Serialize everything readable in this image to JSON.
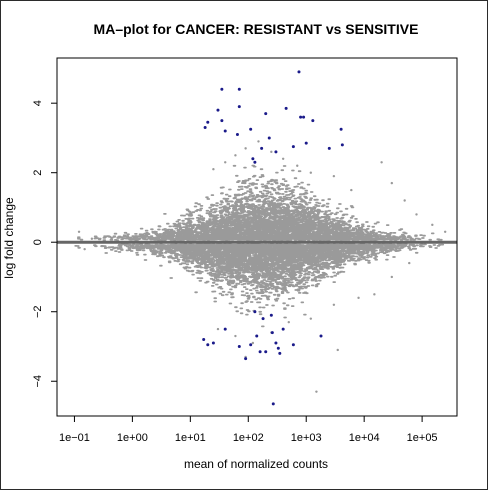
{
  "chart_data": {
    "type": "scatter",
    "title": "MA–plot for CANCER: RESISTANT vs SENSITIVE",
    "xlabel": "mean of normalized counts",
    "ylabel": "log fold change",
    "x_scale": "log10",
    "xlim": [
      0.05,
      400000
    ],
    "ylim": [
      -5,
      5.3
    ],
    "x_ticks": [
      {
        "value": 0.1,
        "label": "1e−01"
      },
      {
        "value": 1,
        "label": "1e+00"
      },
      {
        "value": 10,
        "label": "1e+01"
      },
      {
        "value": 100,
        "label": "1e+02"
      },
      {
        "value": 1000,
        "label": "1e+03"
      },
      {
        "value": 10000,
        "label": "1e+04"
      },
      {
        "value": 100000,
        "label": "1e+05"
      }
    ],
    "y_ticks": [
      {
        "value": -4,
        "label": "−4"
      },
      {
        "value": -2,
        "label": "−2"
      },
      {
        "value": 0,
        "label": "0"
      },
      {
        "value": 2,
        "label": "2"
      },
      {
        "value": 4,
        "label": "4"
      }
    ],
    "reference_line": {
      "y": 0,
      "color": "#666666"
    },
    "grid": false,
    "colors": {
      "nonsignificant": "#9a9a9a",
      "significant": "#1a1a8a"
    },
    "series": [
      {
        "significant": false,
        "density_profile": {
          "log10_mean_range": [
            -1,
            5.4
          ],
          "spread_peak_log10": 2.3
        },
        "points": [
          {
            "x": 25,
            "y": 2.1
          },
          {
            "x": 40,
            "y": 2.3
          },
          {
            "x": 60,
            "y": 2.5
          },
          {
            "x": 90,
            "y": 2.7
          },
          {
            "x": 150,
            "y": 2.9
          },
          {
            "x": 250,
            "y": 2.6
          },
          {
            "x": 400,
            "y": 2.4
          },
          {
            "x": 700,
            "y": 2.2
          },
          {
            "x": 1200,
            "y": 2.0
          },
          {
            "x": 3000,
            "y": 1.9
          },
          {
            "x": 6000,
            "y": 1.5
          },
          {
            "x": 20000,
            "y": 2.3
          },
          {
            "x": 30000,
            "y": 1.7
          },
          {
            "x": 50000,
            "y": 1.2
          },
          {
            "x": 80000,
            "y": 0.8
          },
          {
            "x": 150000,
            "y": 0.5
          },
          {
            "x": 250000,
            "y": 0.3
          },
          {
            "x": 0.12,
            "y": 0.3
          },
          {
            "x": 0.15,
            "y": -0.2
          },
          {
            "x": 0.2,
            "y": 0.1
          },
          {
            "x": 30,
            "y": -2.5
          },
          {
            "x": 60,
            "y": -2.7
          },
          {
            "x": 120,
            "y": -2.9
          },
          {
            "x": 250,
            "y": -2.6
          },
          {
            "x": 500,
            "y": -2.3
          },
          {
            "x": 1200,
            "y": -2.2
          },
          {
            "x": 3000,
            "y": -1.8
          },
          {
            "x": 8000,
            "y": -1.6
          },
          {
            "x": 15000,
            "y": -1.5
          },
          {
            "x": 30000,
            "y": -1.0
          },
          {
            "x": 60000,
            "y": -0.6
          },
          {
            "x": 1500,
            "y": -4.3
          },
          {
            "x": 90,
            "y": -3.3
          },
          {
            "x": 3500,
            "y": -3.1
          }
        ]
      },
      {
        "significant": true,
        "points": [
          {
            "x": 18,
            "y": 3.3
          },
          {
            "x": 20,
            "y": 3.45
          },
          {
            "x": 30,
            "y": 3.8
          },
          {
            "x": 35,
            "y": 4.4
          },
          {
            "x": 35,
            "y": 3.5
          },
          {
            "x": 40,
            "y": 3.2
          },
          {
            "x": 65,
            "y": 3.1
          },
          {
            "x": 70,
            "y": 4.4
          },
          {
            "x": 70,
            "y": 3.9
          },
          {
            "x": 110,
            "y": 3.25
          },
          {
            "x": 120,
            "y": 2.4
          },
          {
            "x": 130,
            "y": 2.3
          },
          {
            "x": 170,
            "y": 2.7
          },
          {
            "x": 200,
            "y": 3.7
          },
          {
            "x": 230,
            "y": 3.0
          },
          {
            "x": 300,
            "y": 2.6
          },
          {
            "x": 450,
            "y": 3.85
          },
          {
            "x": 600,
            "y": 2.75
          },
          {
            "x": 750,
            "y": 4.9
          },
          {
            "x": 800,
            "y": 3.6
          },
          {
            "x": 900,
            "y": 3.6
          },
          {
            "x": 1000,
            "y": 2.85
          },
          {
            "x": 1300,
            "y": 3.5
          },
          {
            "x": 2500,
            "y": 2.7
          },
          {
            "x": 4000,
            "y": 3.25
          },
          {
            "x": 4200,
            "y": 2.8
          },
          {
            "x": 17,
            "y": -2.8
          },
          {
            "x": 20,
            "y": -2.95
          },
          {
            "x": 25,
            "y": -2.9
          },
          {
            "x": 40,
            "y": -2.5
          },
          {
            "x": 70,
            "y": -3.0
          },
          {
            "x": 90,
            "y": -3.35
          },
          {
            "x": 110,
            "y": -2.95
          },
          {
            "x": 130,
            "y": -2.0
          },
          {
            "x": 140,
            "y": -2.7
          },
          {
            "x": 160,
            "y": -3.15
          },
          {
            "x": 180,
            "y": -2.2
          },
          {
            "x": 200,
            "y": -3.15
          },
          {
            "x": 250,
            "y": -2.1
          },
          {
            "x": 260,
            "y": -2.6
          },
          {
            "x": 270,
            "y": -4.65
          },
          {
            "x": 300,
            "y": -2.9
          },
          {
            "x": 330,
            "y": -3.05
          },
          {
            "x": 350,
            "y": -3.2
          },
          {
            "x": 400,
            "y": -2.5
          },
          {
            "x": 600,
            "y": -2.95
          },
          {
            "x": 1800,
            "y": -2.7
          }
        ]
      }
    ]
  }
}
